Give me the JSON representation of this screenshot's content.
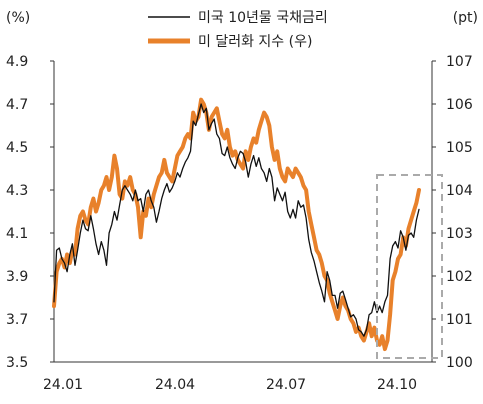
{
  "chart_data": {
    "type": "line",
    "y_left_unit": "(%)",
    "y_right_unit": "(pt)",
    "y_left_ticks": [
      "3.5",
      "3.7",
      "3.9",
      "4.1",
      "4.3",
      "4.5",
      "4.7",
      "4.9"
    ],
    "y_right_ticks": [
      "100",
      "101",
      "102",
      "103",
      "104",
      "105",
      "106",
      "107"
    ],
    "x_ticks": [
      "24.01",
      "24.04",
      "24.07",
      "24.10"
    ],
    "ylim_left": [
      3.5,
      4.9
    ],
    "ylim_right": [
      100,
      107
    ],
    "x_range_months": "2024-01 to 2024-10",
    "grid": false,
    "legend_position": "top-center",
    "highlight_box": "dashed grey box around the last weeks (around 24.09 to 24.10)",
    "series": [
      {
        "name": "미국 10년물 국채금리",
        "axis": "left",
        "color": "#111111",
        "values": [
          3.78,
          4.02,
          4.03,
          3.98,
          3.96,
          3.92,
          4.0,
          4.05,
          3.95,
          4.02,
          4.1,
          4.16,
          4.12,
          4.11,
          4.18,
          4.12,
          4.05,
          4.0,
          4.06,
          4.02,
          3.95,
          4.1,
          4.14,
          4.2,
          4.16,
          4.23,
          4.3,
          4.32,
          4.3,
          4.28,
          4.25,
          4.3,
          4.25,
          4.26,
          4.2,
          4.28,
          4.3,
          4.25,
          4.22,
          4.15,
          4.2,
          4.26,
          4.3,
          4.33,
          4.29,
          4.31,
          4.34,
          4.38,
          4.36,
          4.4,
          4.43,
          4.45,
          4.48,
          4.62,
          4.6,
          4.65,
          4.7,
          4.66,
          4.68,
          4.58,
          4.61,
          4.63,
          4.56,
          4.54,
          4.47,
          4.46,
          4.5,
          4.45,
          4.42,
          4.4,
          4.45,
          4.48,
          4.47,
          4.43,
          4.36,
          4.42,
          4.46,
          4.41,
          4.45,
          4.4,
          4.38,
          4.34,
          4.4,
          4.36,
          4.25,
          4.31,
          4.28,
          4.25,
          4.29,
          4.2,
          4.17,
          4.21,
          4.17,
          4.25,
          4.22,
          4.23,
          4.17,
          4.07,
          4.01,
          3.97,
          3.92,
          3.87,
          3.83,
          3.78,
          3.92,
          3.88,
          3.81,
          3.81,
          3.75,
          3.82,
          3.83,
          3.79,
          3.75,
          3.71,
          3.72,
          3.7,
          3.65,
          3.64,
          3.62,
          3.65,
          3.72,
          3.73,
          3.78,
          3.73,
          3.76,
          3.73,
          3.78,
          3.81,
          3.98,
          4.04,
          4.06,
          4.03,
          4.11,
          4.08,
          4.02,
          4.09,
          4.1,
          4.08,
          4.16,
          4.21
        ]
      },
      {
        "name": "미 달러화 지수 (우)",
        "axis": "right",
        "color": "#E8812B",
        "values": [
          101.3,
          102.1,
          102.3,
          102.4,
          102.2,
          102.5,
          102.3,
          102.6,
          102.5,
          103.1,
          103.4,
          103.5,
          103.3,
          103.2,
          103.6,
          103.8,
          103.5,
          103.7,
          104.0,
          104.1,
          104.3,
          104.0,
          104.3,
          104.8,
          104.5,
          103.9,
          103.8,
          104.2,
          104.1,
          104.3,
          104.0,
          103.9,
          103.6,
          102.9,
          103.5,
          103.4,
          103.8,
          103.6,
          103.9,
          104.1,
          104.3,
          104.4,
          104.7,
          104.4,
          104.3,
          104.2,
          104.5,
          104.8,
          104.9,
          105.0,
          105.2,
          105.3,
          105.2,
          105.8,
          105.6,
          105.7,
          106.1,
          106.0,
          105.8,
          105.4,
          105.7,
          105.8,
          105.9,
          105.6,
          105.3,
          105.2,
          105.4,
          105.0,
          104.8,
          104.9,
          104.7,
          104.6,
          104.5,
          104.9,
          104.7,
          105.0,
          105.2,
          105.1,
          105.4,
          105.6,
          105.8,
          105.7,
          105.5,
          105.0,
          104.7,
          104.9,
          104.5,
          104.3,
          104.2,
          104.5,
          104.4,
          104.3,
          104.5,
          104.4,
          104.3,
          104.1,
          104.0,
          103.5,
          103.2,
          102.9,
          102.6,
          102.5,
          102.3,
          102.0,
          101.9,
          101.6,
          101.4,
          101.2,
          101.0,
          101.3,
          101.5,
          101.3,
          101.2,
          101.0,
          100.9,
          100.7,
          100.8,
          100.6,
          100.5,
          100.7,
          100.9,
          100.6,
          100.8,
          100.5,
          100.4,
          100.6,
          100.3,
          100.5,
          101.1,
          101.9,
          102.1,
          102.4,
          102.5,
          102.9,
          102.7,
          103.1,
          103.3,
          103.5,
          103.7,
          104.0
        ]
      }
    ]
  }
}
